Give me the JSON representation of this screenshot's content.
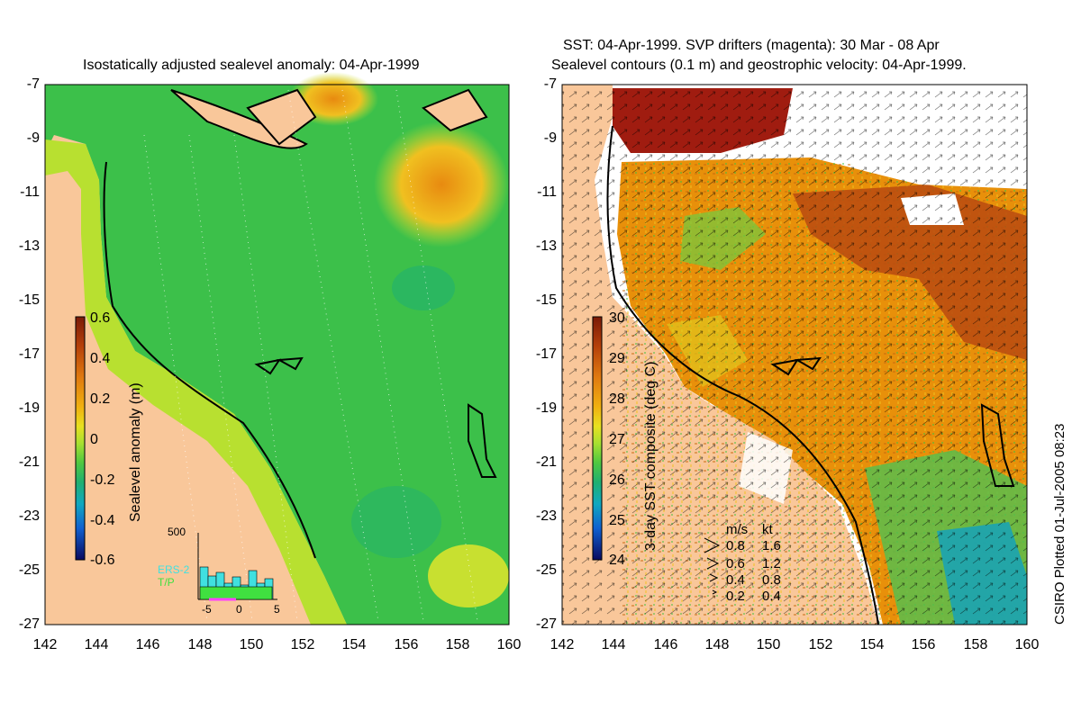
{
  "left_panel": {
    "title": "Isostatically adjusted sealevel anomaly: 04-Apr-1999",
    "colorbar": {
      "label": "Sealevel anomaly (m)",
      "ticks": [
        "0.6",
        "0.4",
        "0.2",
        "0",
        "-0.2",
        "-0.4",
        "-0.6"
      ],
      "colors": [
        "#7a1a08",
        "#b5400a",
        "#e07a10",
        "#f0b010",
        "#e8e020",
        "#a8e030",
        "#60d040",
        "#30c050",
        "#20b070",
        "#10a0b0",
        "#1060d0",
        "#102090",
        "#0a0a60"
      ]
    },
    "histogram": {
      "ymax_label": "500",
      "series": [
        "ERS-2",
        "T/P"
      ],
      "x_ticks": [
        "-5",
        "0",
        "5"
      ],
      "colors": {
        "ers2": "#40e0e0",
        "tp": "#40e040",
        "marker": "#ff40ff"
      }
    }
  },
  "right_panel": {
    "title_line1": "SST: 04-Apr-1999. SVP drifters (magenta): 30 Mar - 08 Apr",
    "title_line2": "Sealevel contours (0.1 m) and geostrophic velocity: 04-Apr-1999.",
    "colorbar": {
      "label": "3-day SST composite (deg C)",
      "ticks": [
        "30",
        "29",
        "28",
        "27",
        "26",
        "25",
        "24"
      ]
    },
    "velocity_legend": {
      "header": [
        "m/s",
        "kt"
      ],
      "rows": [
        [
          "0.8",
          "1.6"
        ],
        [
          "0.6",
          "1.2"
        ],
        [
          "0.4",
          "0.8"
        ],
        [
          "0.2",
          "0.4"
        ]
      ]
    }
  },
  "axes": {
    "y_ticks": [
      "-7",
      "-9",
      "-11",
      "-13",
      "-15",
      "-17",
      "-19",
      "-21",
      "-23",
      "-25",
      "-27"
    ],
    "x_ticks": [
      "142",
      "144",
      "146",
      "148",
      "150",
      "152",
      "154",
      "156",
      "158",
      "160"
    ]
  },
  "credit": "CSIRO Plotted 01-Jul-2005 08:23",
  "colors": {
    "land": "#f9c79a",
    "sea_green": "#3cc04a",
    "sst_orange": "#e8900a",
    "sst_brown": "#a02010"
  }
}
